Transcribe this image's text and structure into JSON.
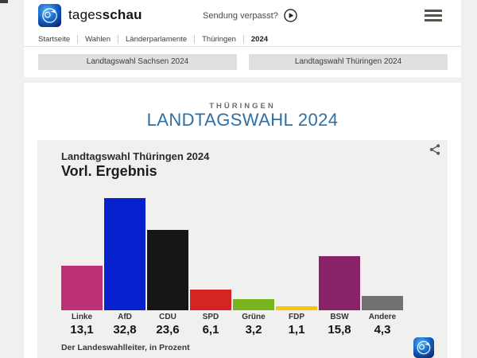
{
  "header": {
    "brand_regular": "tages",
    "brand_bold": "schau",
    "watch_label": "Sendung verpasst?"
  },
  "breadcrumb": {
    "items": [
      "Startseite",
      "Wahlen",
      "Länderparlamente",
      "Thüringen",
      "2024"
    ]
  },
  "region_tabs": {
    "sachsen": "Landtagswahl Sachsen 2024",
    "thueringen": "Landtagswahl Thüringen 2024"
  },
  "page": {
    "kicker": "THÜRINGEN",
    "title": "LANDTAGSWAHL 2024"
  },
  "chart_data": {
    "type": "bar",
    "title": "Landtagswahl Thüringen 2024",
    "subtitle": "Vorl. Ergebnis",
    "categories": [
      "Linke",
      "AfD",
      "CDU",
      "SPD",
      "Grüne",
      "FDP",
      "BSW",
      "Andere"
    ],
    "values": [
      13.1,
      32.8,
      23.6,
      6.1,
      3.2,
      1.1,
      15.8,
      4.3
    ],
    "value_labels": [
      "13,1",
      "32,8",
      "23,6",
      "6,1",
      "3,2",
      "1,1",
      "15,8",
      "4,3"
    ],
    "colors": [
      "#be3075",
      "#0621cd",
      "#161616",
      "#d42523",
      "#79b51e",
      "#f8c702",
      "#8a2268",
      "#717171"
    ],
    "unit": "Prozent",
    "source": "Der Landeswahlleiter, in Prozent",
    "ylim": [
      0,
      35
    ],
    "grid": false,
    "legend": "none"
  },
  "colors": {
    "page_bg": "#f0f0f0",
    "card_bg": "#f0f0ef",
    "tab_bg": "#e0e0e0",
    "title_blue": "#2e6fa8"
  }
}
